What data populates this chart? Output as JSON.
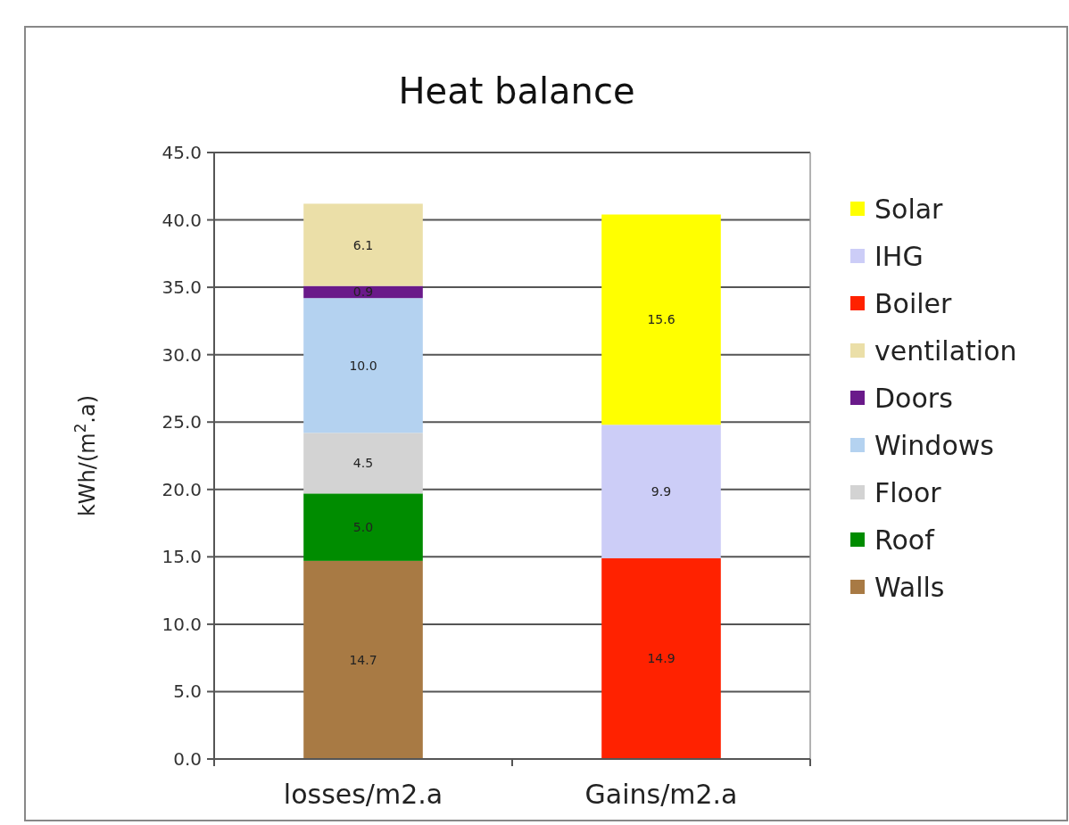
{
  "chart_data": {
    "type": "bar",
    "title": "Heat balance",
    "ylabel": "kWh/(m$^{2}$.a)",
    "categories": [
      "losses/m2.a",
      "Gains/m2.a"
    ],
    "stacked": true,
    "grid": "y",
    "legend": "right",
    "ylim": [
      0,
      45
    ],
    "yticks": [
      {
        "value": 0,
        "label": "0.0"
      },
      {
        "value": 5,
        "label": "5.0"
      },
      {
        "value": 10,
        "label": "10.0"
      },
      {
        "value": 15,
        "label": "15.0"
      },
      {
        "value": 20,
        "label": "20.0"
      },
      {
        "value": 25,
        "label": "25.0"
      },
      {
        "value": 30,
        "label": "30.0"
      },
      {
        "value": 35,
        "label": "35.0"
      },
      {
        "value": 40,
        "label": "40.0"
      },
      {
        "value": 45,
        "label": "45.0"
      }
    ],
    "series": [
      {
        "name": "Walls",
        "color": "#a87a44",
        "values": [
          14.7,
          null
        ],
        "value_labels": [
          "14.7",
          null
        ]
      },
      {
        "name": "Roof",
        "color": "#008c00",
        "values": [
          5.0,
          null
        ],
        "value_labels": [
          "5.0",
          null
        ]
      },
      {
        "name": "Floor",
        "color": "#d3d3d3",
        "values": [
          4.5,
          null
        ],
        "value_labels": [
          "4.5",
          null
        ]
      },
      {
        "name": "Windows",
        "color": "#b4d2f0",
        "values": [
          10.0,
          null
        ],
        "value_labels": [
          "10.0",
          null
        ]
      },
      {
        "name": "Doors",
        "color": "#6a1a8a",
        "values": [
          0.9,
          null
        ],
        "value_labels": [
          "0.9",
          null
        ]
      },
      {
        "name": "ventilation",
        "color": "#ebdfa8",
        "values": [
          6.1,
          null
        ],
        "value_labels": [
          "6.1",
          null
        ]
      },
      {
        "name": "Boiler",
        "color": "#ff2200",
        "values": [
          null,
          14.9
        ],
        "value_labels": [
          null,
          "14.9"
        ]
      },
      {
        "name": "IHG",
        "color": "#cccdf7",
        "values": [
          null,
          9.9
        ],
        "value_labels": [
          null,
          "9.9"
        ]
      },
      {
        "name": "Solar",
        "color": "#ffff00",
        "values": [
          null,
          15.6
        ],
        "value_labels": [
          null,
          "15.6"
        ]
      }
    ]
  }
}
